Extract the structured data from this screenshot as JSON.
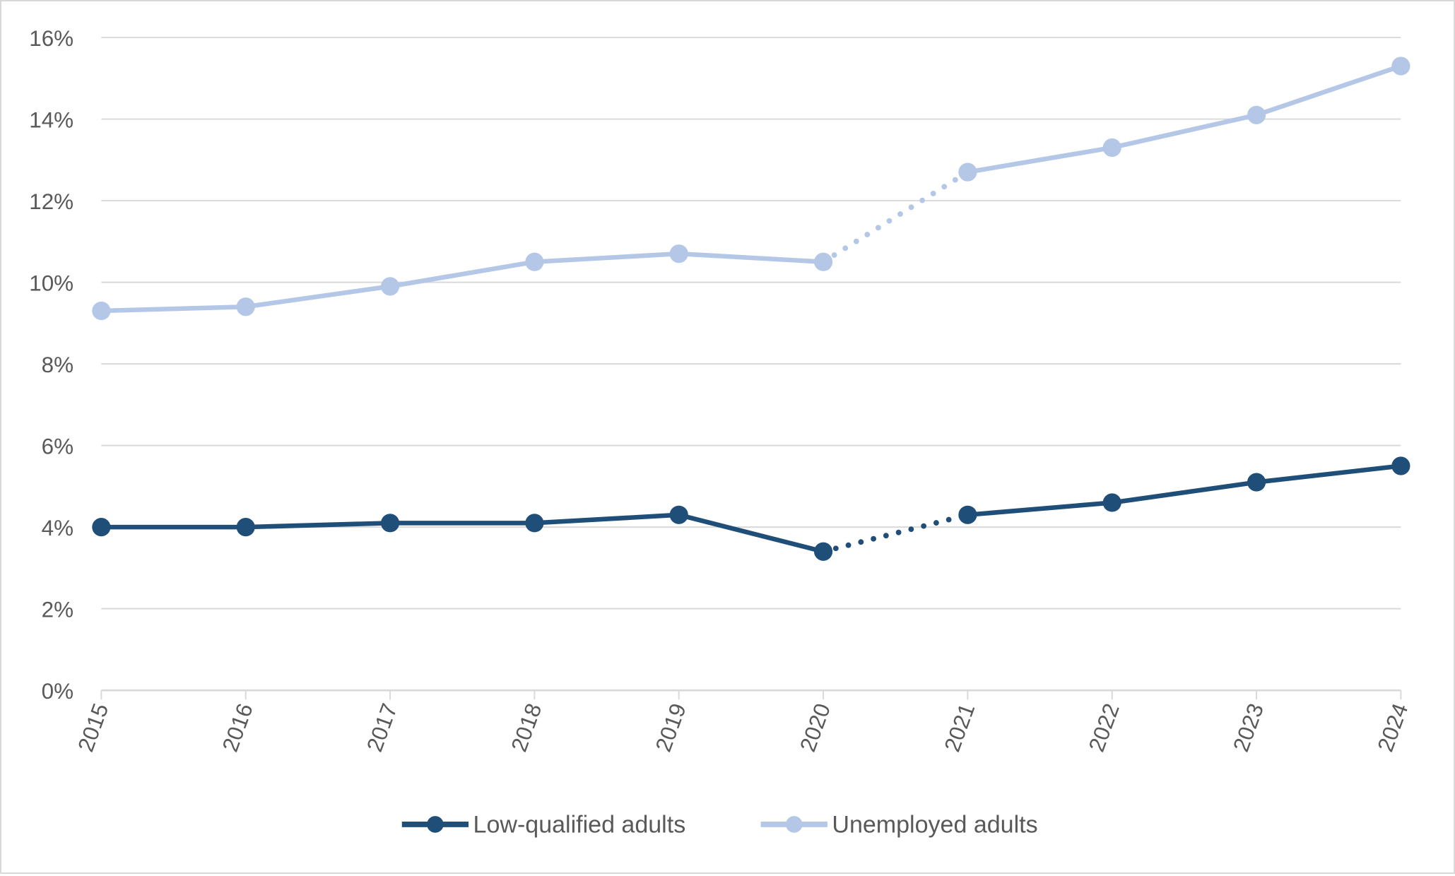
{
  "chart_data": {
    "type": "line",
    "title": "",
    "xlabel": "",
    "ylabel": "",
    "categories": [
      "2015",
      "2016",
      "2017",
      "2018",
      "2019",
      "2020",
      "2021",
      "2022",
      "2023",
      "2024"
    ],
    "ylim": [
      0,
      16
    ],
    "yticks": [
      "0%",
      "2%",
      "4%",
      "6%",
      "8%",
      "10%",
      "12%",
      "14%",
      "16%"
    ],
    "grid": true,
    "legend_position": "bottom",
    "dotted_segment": [
      "2020",
      "2021"
    ],
    "series": [
      {
        "name": "Low-qualified adults",
        "color": "#1f4e79",
        "values": [
          4.0,
          4.0,
          4.1,
          4.1,
          4.3,
          3.4,
          4.3,
          4.6,
          5.1,
          5.5
        ]
      },
      {
        "name": "Unemployed adults",
        "color": "#b4c7e7",
        "values": [
          9.3,
          9.4,
          9.9,
          10.5,
          10.7,
          10.5,
          12.7,
          13.3,
          14.1,
          15.3
        ]
      }
    ]
  }
}
